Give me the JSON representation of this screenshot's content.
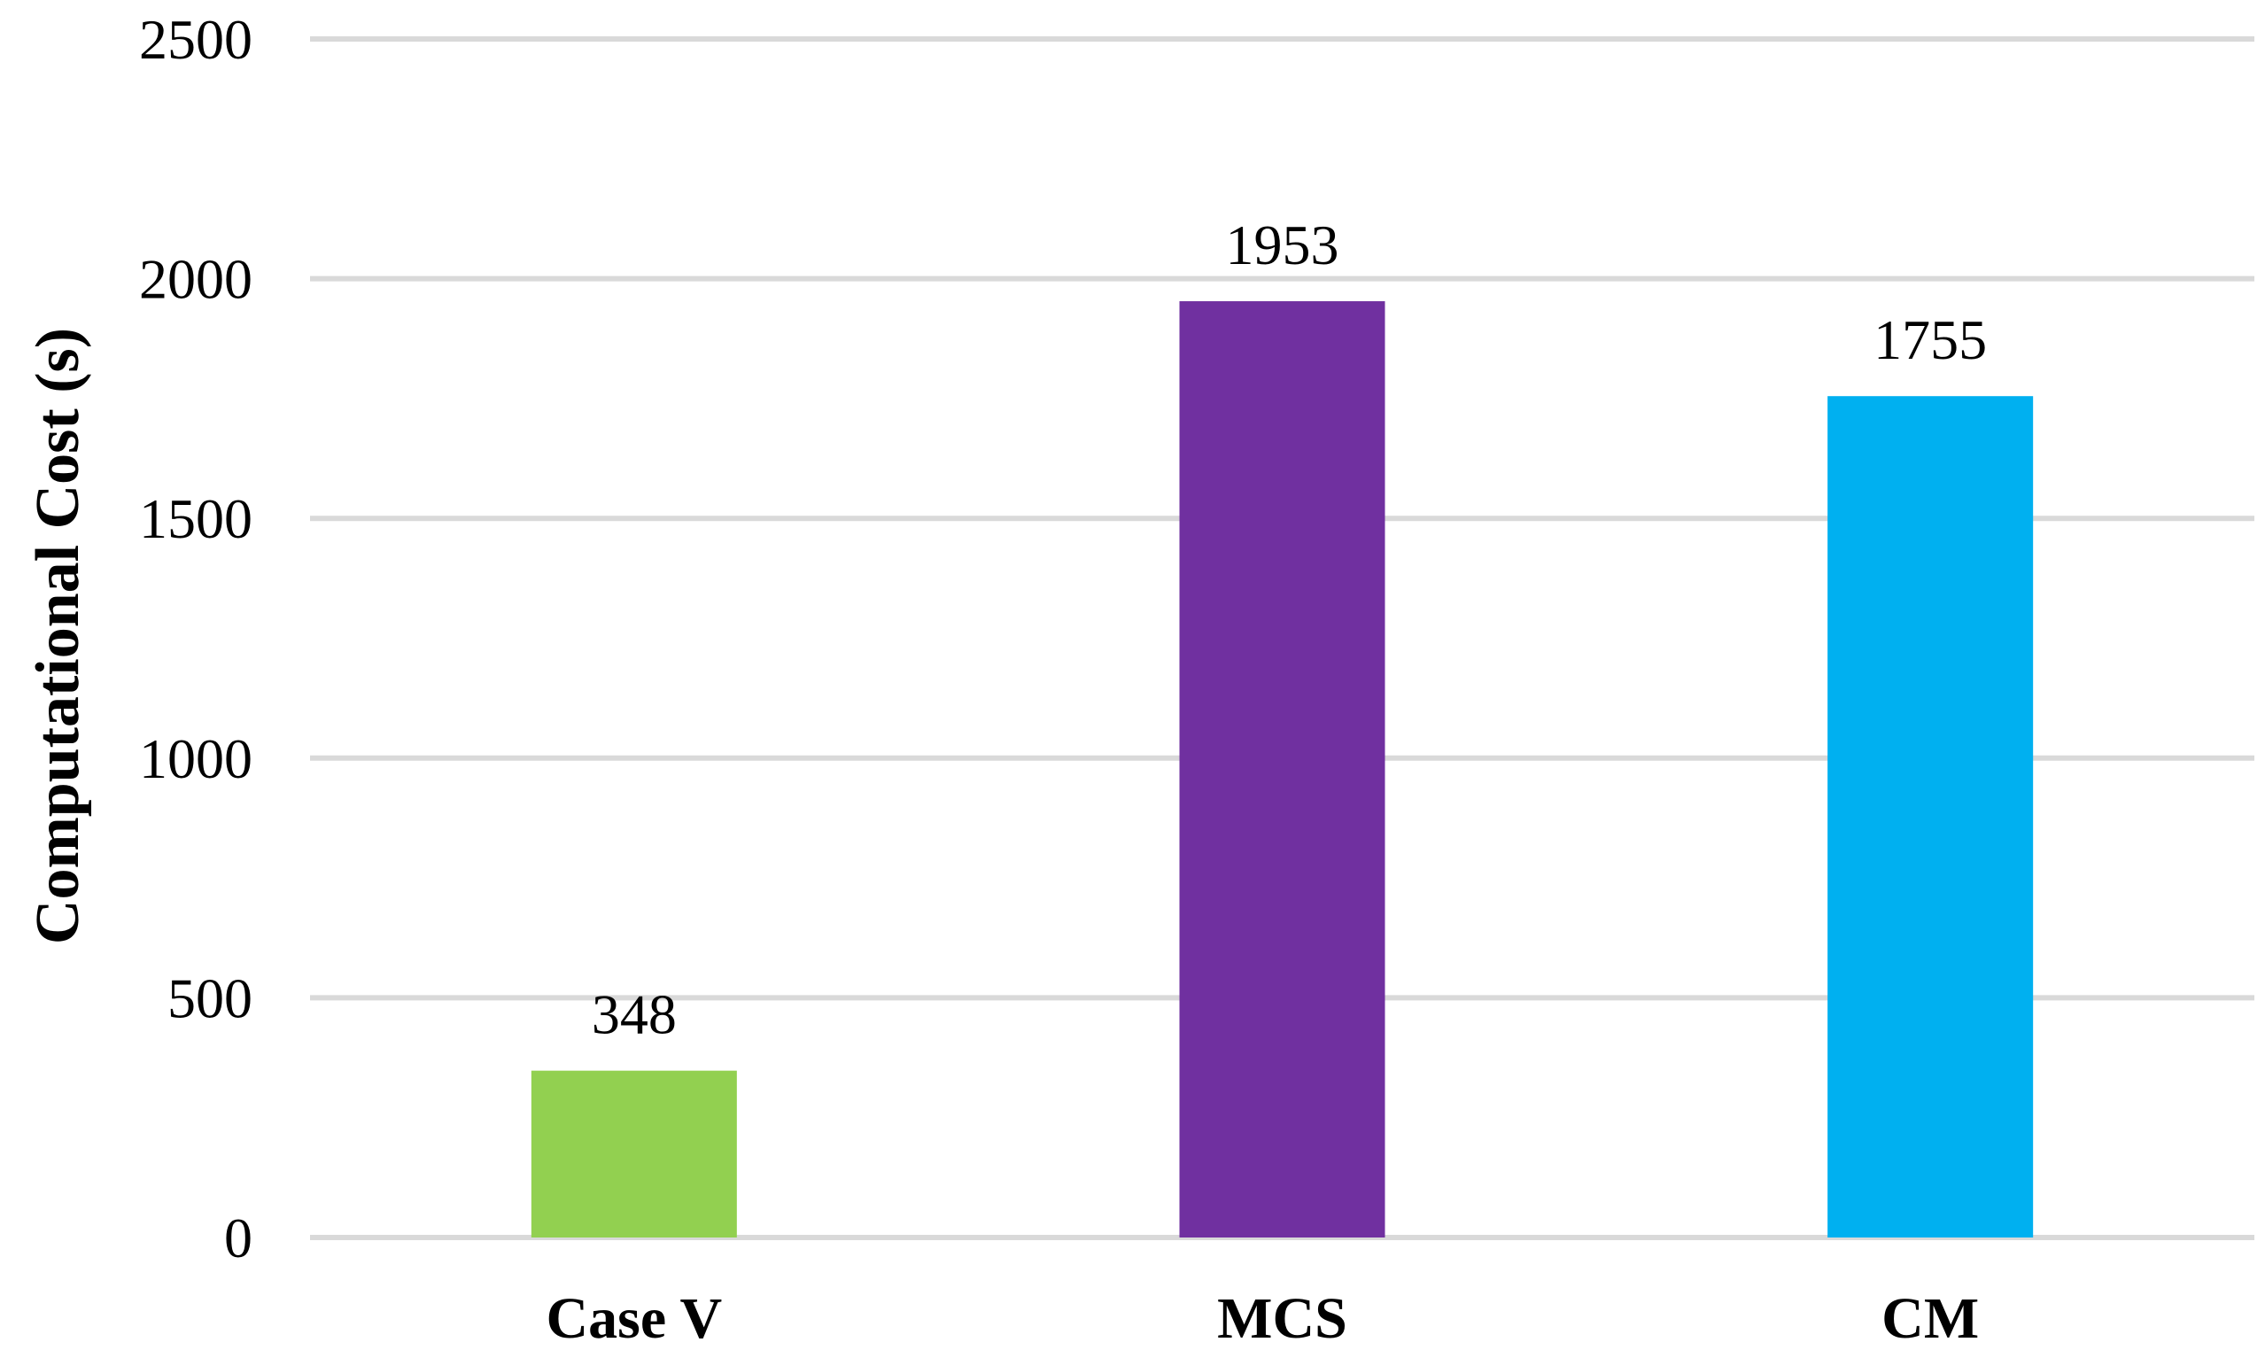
{
  "chart_data": {
    "type": "bar",
    "title": "",
    "xlabel": "",
    "ylabel": "Computational Cost (s)",
    "categories": [
      "Case V",
      "MCS",
      "CM"
    ],
    "values": [
      348,
      1953,
      1755
    ],
    "data_labels": [
      "348",
      "1953",
      "1755"
    ],
    "colors": [
      "#92d050",
      "#7030a0",
      "#00b0f0"
    ],
    "ylim": [
      0,
      2500
    ],
    "yticks": [
      0,
      500,
      1000,
      1500,
      2000,
      2500
    ],
    "ytick_labels": [
      "0",
      "500",
      "1000",
      "1500",
      "2000",
      "2500"
    ],
    "grid": true,
    "legend": "none"
  }
}
